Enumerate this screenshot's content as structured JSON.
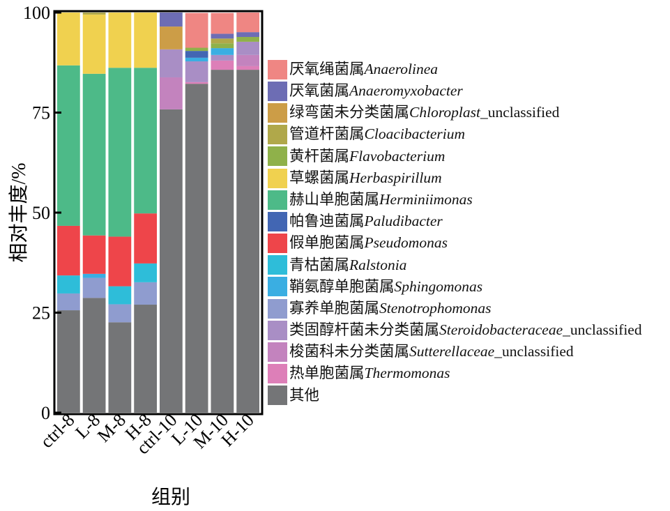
{
  "chart_data": {
    "type": "bar",
    "stacked": true,
    "title": "",
    "xlabel": "组别",
    "ylabel": "相对丰度/%",
    "ylim": [
      0,
      100
    ],
    "yticks": [
      0,
      25,
      50,
      75,
      100
    ],
    "grid": false,
    "legend_position": "right",
    "categories": [
      "ctrl-8",
      "L-8",
      "M-8",
      "H-8",
      "ctrl-10",
      "L-10",
      "M-10",
      "H-10"
    ],
    "series": [
      {
        "name": "其他",
        "cn": "其他",
        "latin": "",
        "suffix": "",
        "color": "#747577",
        "values": [
          25.6,
          28.7,
          22.6,
          27.0,
          75.8,
          82.2,
          85.7,
          85.7
        ]
      },
      {
        "name": "热单胞菌属Thermomonas",
        "cn": "热单胞菌属",
        "latin": "Thermomonas",
        "suffix": "",
        "color": "#dd7fb8",
        "values": [
          0,
          0,
          0,
          0,
          0,
          0.4,
          2.3,
          0.9
        ]
      },
      {
        "name": "梭菌科未分类菌属Sutterellaceae_unclassified",
        "cn": "梭菌科未分类菌属",
        "latin": "Sutterellaceae",
        "suffix": "_unclassified",
        "color": "#c383be",
        "values": [
          0,
          0,
          0,
          0,
          8.0,
          0,
          0,
          2.8
        ]
      },
      {
        "name": "类固醇杆菌未分类菌属Steroidobacteraceae_unclassified",
        "cn": "类固醇杆菌未分类菌属",
        "latin": "Steroidobacteraceae",
        "suffix": "_unclassified",
        "color": "#a98ec5",
        "values": [
          0,
          0,
          0,
          0,
          7.0,
          5.2,
          1.4,
          3.3
        ]
      },
      {
        "name": "寡养单胞菌属Stenotrophomonas",
        "cn": "寡养单胞菌属",
        "latin": "Stenotrophomonas",
        "suffix": "",
        "color": "#8f9ccf",
        "values": [
          4.2,
          5.0,
          4.5,
          5.6,
          0,
          0,
          0,
          0
        ]
      },
      {
        "name": "鞘氨醇单胞菌属Sphingomonas",
        "cn": "鞘氨醇单胞菌属",
        "latin": "Sphingomonas",
        "suffix": "",
        "color": "#3aaee2",
        "values": [
          0,
          1.0,
          0,
          0,
          0,
          0.9,
          1.7,
          0
        ]
      },
      {
        "name": "青枯菌属Ralstonia",
        "cn": "青枯菌属",
        "latin": "Ralstonia",
        "suffix": "",
        "color": "#2ebdd9",
        "values": [
          4.5,
          0,
          4.5,
          4.7,
          0,
          0,
          0,
          0
        ]
      },
      {
        "name": "假单胞菌属Pseudomonas",
        "cn": "假单胞菌属",
        "latin": "Pseudomonas",
        "suffix": "",
        "color": "#ee454a",
        "values": [
          12.4,
          9.6,
          12.4,
          12.5,
          0,
          0,
          0,
          0
        ]
      },
      {
        "name": "帕鲁迪菌属Paludibacter",
        "cn": "帕鲁迪菌属",
        "latin": "Paludibacter",
        "suffix": "",
        "color": "#4266b3",
        "values": [
          0,
          0,
          0,
          0,
          0,
          1.7,
          0,
          0
        ]
      },
      {
        "name": "赫山单胞菌属Herminiimonas",
        "cn": "赫山单胞菌属",
        "latin": "Herminiimonas",
        "suffix": "",
        "color": "#4dba88",
        "values": [
          40.1,
          40.4,
          42.2,
          36.4,
          0,
          0,
          0,
          0
        ]
      },
      {
        "name": "草螺菌属Herbaspirillum",
        "cn": "草螺菌属",
        "latin": "Herbaspirillum",
        "suffix": "",
        "color": "#f0d14f",
        "values": [
          13.2,
          14.8,
          13.8,
          13.8,
          0,
          0,
          0,
          0
        ]
      },
      {
        "name": "黄杆菌属Flavobacterium",
        "cn": "黄杆菌属",
        "latin": "Flavobacterium",
        "suffix": "",
        "color": "#8fb14a",
        "values": [
          0,
          0,
          0,
          0,
          0,
          0.8,
          1.2,
          1.2
        ]
      },
      {
        "name": "管道杆菌属Cloacibacterium",
        "cn": "管道杆菌属",
        "latin": "Cloacibacterium",
        "suffix": "",
        "color": "#b0a84a",
        "values": [
          0,
          0.5,
          0,
          0,
          0,
          0,
          1.2,
          0
        ]
      },
      {
        "name": "绿弯菌未分类菌属Chloroplast_unclassified",
        "cn": "绿弯菌未分类菌属",
        "latin": "Chloroplast",
        "suffix": "_unclassified",
        "color": "#cc9d47",
        "values": [
          0,
          0,
          0,
          0,
          5.7,
          0,
          0,
          0
        ]
      },
      {
        "name": "厌氧菌属Anaeromyxobacter",
        "cn": "厌氧菌属",
        "latin": "Anaeromyxobacter",
        "suffix": "",
        "color": "#6d6db4",
        "values": [
          0,
          0,
          0,
          0,
          3.5,
          0,
          1.2,
          1.2
        ]
      },
      {
        "name": "厌氧绳菌属Anaerolinea",
        "cn": "厌氧绳菌属",
        "latin": "Anaerolinea",
        "suffix": "",
        "color": "#ef8683",
        "values": [
          0,
          0,
          0,
          0,
          0,
          8.7,
          5.2,
          4.9
        ]
      }
    ],
    "legend_order": [
      "厌氧绳菌属Anaerolinea",
      "厌氧菌属Anaeromyxobacter",
      "绿弯菌未分类菌属Chloroplast_unclassified",
      "管道杆菌属Cloacibacterium",
      "黄杆菌属Flavobacterium",
      "草螺菌属Herbaspirillum",
      "赫山单胞菌属Herminiimonas",
      "帕鲁迪菌属Paludibacter",
      "假单胞菌属Pseudomonas",
      "青枯菌属Ralstonia",
      "鞘氨醇单胞菌属Sphingomonas",
      "寡养单胞菌属Stenotrophomonas",
      "类固醇杆菌未分类菌属Steroidobacteraceae_unclassified",
      "梭菌科未分类菌属Sutterellaceae_unclassified",
      "热单胞菌属Thermomonas",
      "其他"
    ]
  }
}
